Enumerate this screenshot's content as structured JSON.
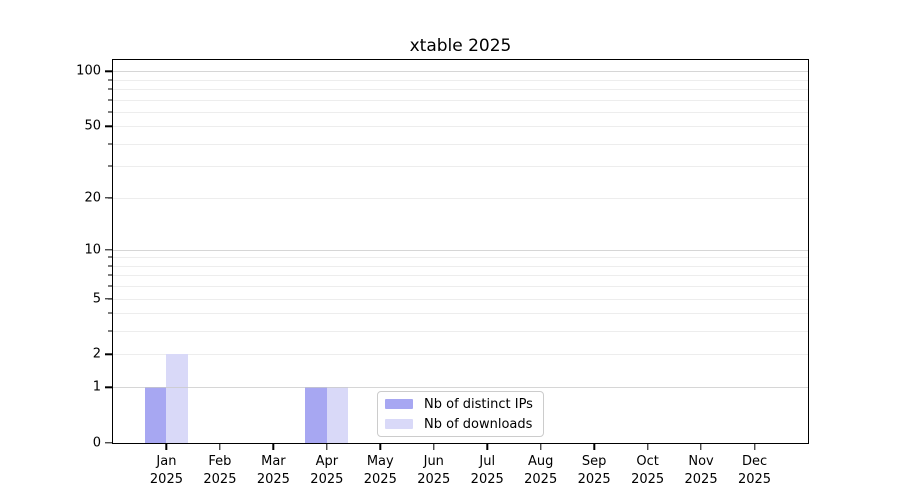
{
  "chart_data": {
    "type": "bar",
    "title": "xtable 2025",
    "x_months": [
      "Jan",
      "Feb",
      "Mar",
      "Apr",
      "May",
      "Jun",
      "Jul",
      "Aug",
      "Sep",
      "Oct",
      "Nov",
      "Dec"
    ],
    "x_year": "2025",
    "series": [
      {
        "name": "Nb of distinct IPs",
        "color": "#a7a7f2",
        "values": [
          1,
          0,
          0,
          1,
          0,
          0,
          0,
          0,
          0,
          0,
          0,
          0
        ]
      },
      {
        "name": "Nb of downloads",
        "color": "#d9d9f8",
        "values": [
          2,
          0,
          0,
          1,
          0,
          0,
          0,
          0,
          0,
          0,
          0,
          0
        ]
      }
    ],
    "y_ticks": [
      0,
      1,
      2,
      5,
      10,
      20,
      50,
      100
    ],
    "y_scale": "log1p",
    "ylim": [
      0,
      115
    ],
    "grid_major": [
      1,
      10,
      100
    ],
    "grid_minor": [
      2,
      3,
      4,
      5,
      6,
      7,
      8,
      9,
      20,
      30,
      40,
      50,
      60,
      70,
      80,
      90
    ],
    "legend_position": "inside-bottom-center",
    "colors": {
      "axis": "#000000",
      "grid_major": "#c8c8c8",
      "grid_minor": "#ededed",
      "text": "#000000"
    }
  }
}
